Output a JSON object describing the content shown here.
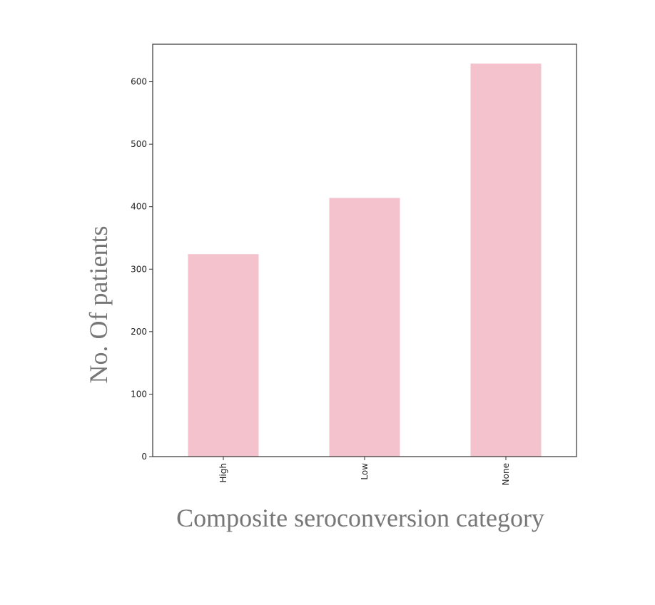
{
  "chart_data": {
    "type": "bar",
    "categories": [
      "High",
      "Low",
      "None"
    ],
    "values": [
      324,
      414,
      629
    ],
    "title": "",
    "xlabel": "Composite seroconversion category",
    "ylabel": "No. Of patients",
    "ylim": [
      0,
      660
    ],
    "yticks": [
      0,
      100,
      200,
      300,
      400,
      500,
      600
    ],
    "ytick_labels": [
      "0",
      "100",
      "200",
      "300",
      "400",
      "500",
      "600"
    ],
    "grid": false,
    "legend": "none",
    "colors": {
      "bar": "#f4c2cd",
      "axis": "#333333",
      "label": "#777777"
    }
  }
}
